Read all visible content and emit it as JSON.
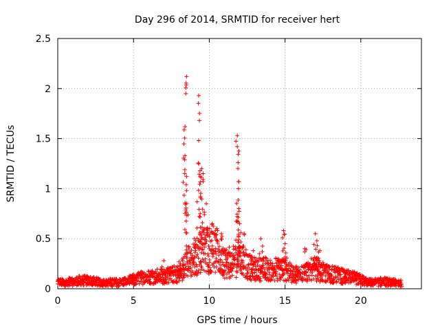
{
  "chart_data": {
    "type": "scatter",
    "title": "Day 296 of 2014, SRMTID for receiver hert",
    "xlabel": "GPS time / hours",
    "ylabel": "SRMTID / TECUs",
    "xlim": [
      0,
      24
    ],
    "ylim": [
      0,
      2.5
    ],
    "xticks": [
      0,
      5,
      10,
      15,
      20
    ],
    "xtick_labels": [
      "0",
      "5",
      "10",
      "15",
      "20"
    ],
    "yticks": [
      0,
      0.5,
      1,
      1.5,
      2,
      2.5
    ],
    "ytick_labels": [
      "0",
      "0.5",
      "1",
      "1.5",
      "2",
      "2.5"
    ],
    "grid": true,
    "marker": "+",
    "color": "#ff0000",
    "series": [
      {
        "name": "SRMTID",
        "envelope": [
          [
            0.0,
            0.07
          ],
          [
            0.5,
            0.07
          ],
          [
            1.0,
            0.08
          ],
          [
            1.5,
            0.09
          ],
          [
            2.0,
            0.09
          ],
          [
            2.5,
            0.08
          ],
          [
            3.0,
            0.07
          ],
          [
            3.5,
            0.07
          ],
          [
            4.0,
            0.07
          ],
          [
            4.5,
            0.08
          ],
          [
            5.0,
            0.1
          ],
          [
            5.5,
            0.12
          ],
          [
            6.0,
            0.13
          ],
          [
            6.5,
            0.14
          ],
          [
            7.0,
            0.14
          ],
          [
            7.5,
            0.15
          ],
          [
            8.0,
            0.18
          ],
          [
            8.4,
            0.25
          ],
          [
            8.6,
            0.3
          ],
          [
            9.0,
            0.32
          ],
          [
            9.5,
            0.42
          ],
          [
            10.0,
            0.45
          ],
          [
            10.5,
            0.42
          ],
          [
            11.0,
            0.3
          ],
          [
            11.5,
            0.28
          ],
          [
            12.0,
            0.35
          ],
          [
            12.5,
            0.25
          ],
          [
            13.0,
            0.22
          ],
          [
            13.5,
            0.22
          ],
          [
            14.0,
            0.22
          ],
          [
            14.5,
            0.22
          ],
          [
            15.0,
            0.22
          ],
          [
            15.5,
            0.16
          ],
          [
            16.0,
            0.16
          ],
          [
            16.5,
            0.2
          ],
          [
            17.0,
            0.22
          ],
          [
            17.5,
            0.18
          ],
          [
            18.0,
            0.16
          ],
          [
            18.5,
            0.15
          ],
          [
            19.0,
            0.13
          ],
          [
            19.5,
            0.12
          ],
          [
            20.0,
            0.1
          ],
          [
            20.5,
            0.07
          ],
          [
            21.0,
            0.07
          ],
          [
            21.5,
            0.08
          ],
          [
            22.0,
            0.07
          ],
          [
            22.7,
            0.06
          ]
        ],
        "peaks": [
          [
            8.5,
            2.12
          ],
          [
            8.45,
            1.95
          ],
          [
            8.4,
            1.62
          ],
          [
            8.4,
            1.33
          ],
          [
            8.5,
            0.98
          ],
          [
            9.3,
            1.93
          ],
          [
            9.35,
            1.68
          ],
          [
            9.3,
            1.48
          ],
          [
            9.5,
            1.2
          ],
          [
            9.6,
            1.15
          ],
          [
            9.8,
            0.85
          ],
          [
            9.4,
            0.75
          ],
          [
            10.2,
            0.65
          ],
          [
            10.5,
            0.6
          ],
          [
            10.8,
            0.55
          ],
          [
            11.85,
            1.53
          ],
          [
            11.85,
            1.42
          ],
          [
            11.9,
            1.26
          ],
          [
            11.95,
            1.07
          ],
          [
            11.95,
            0.8
          ],
          [
            12.0,
            0.65
          ],
          [
            12.3,
            0.55
          ],
          [
            13.4,
            0.5
          ],
          [
            14.9,
            0.58
          ],
          [
            15.0,
            0.45
          ],
          [
            16.3,
            0.4
          ],
          [
            17.0,
            0.55
          ],
          [
            17.1,
            0.48
          ],
          [
            17.3,
            0.38
          ],
          [
            12.9,
            0.38
          ],
          [
            7.0,
            0.28
          ],
          [
            8.0,
            0.27
          ],
          [
            9.0,
            0.5
          ],
          [
            10.0,
            0.4
          ]
        ]
      }
    ]
  }
}
